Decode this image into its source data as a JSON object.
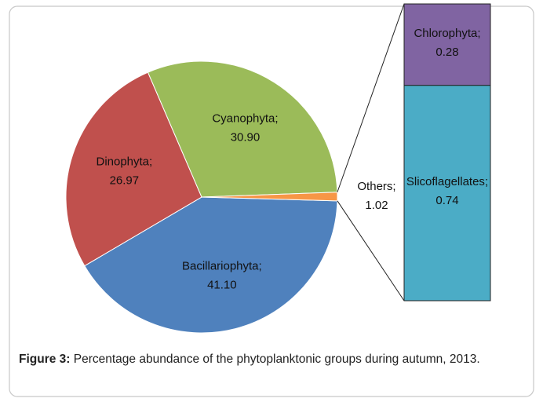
{
  "chart_data": {
    "type": "pie_of_bar",
    "categories": [
      "Bacillariophyta",
      "Dinophyta",
      "Cyanophyta",
      "Others"
    ],
    "values": [
      41.1,
      26.97,
      30.9,
      1.02
    ],
    "value_labels": [
      "41.10",
      "26.97",
      "30.90",
      "1.02"
    ],
    "colors": [
      "#4f81bd",
      "#c0504d",
      "#9bbb59",
      "#f79646"
    ],
    "label_separator": ";",
    "bar": {
      "categories": [
        "Chlorophyta",
        "Slicoflagellates"
      ],
      "values": [
        0.28,
        0.74
      ],
      "value_labels": [
        "0.28",
        "0.74"
      ],
      "colors": [
        "#8064a2",
        "#4bacc6"
      ]
    }
  },
  "caption": {
    "label": "Figure 3:",
    "text": "Percentage abundance of the phytoplanktonic groups during autumn, 2013."
  }
}
